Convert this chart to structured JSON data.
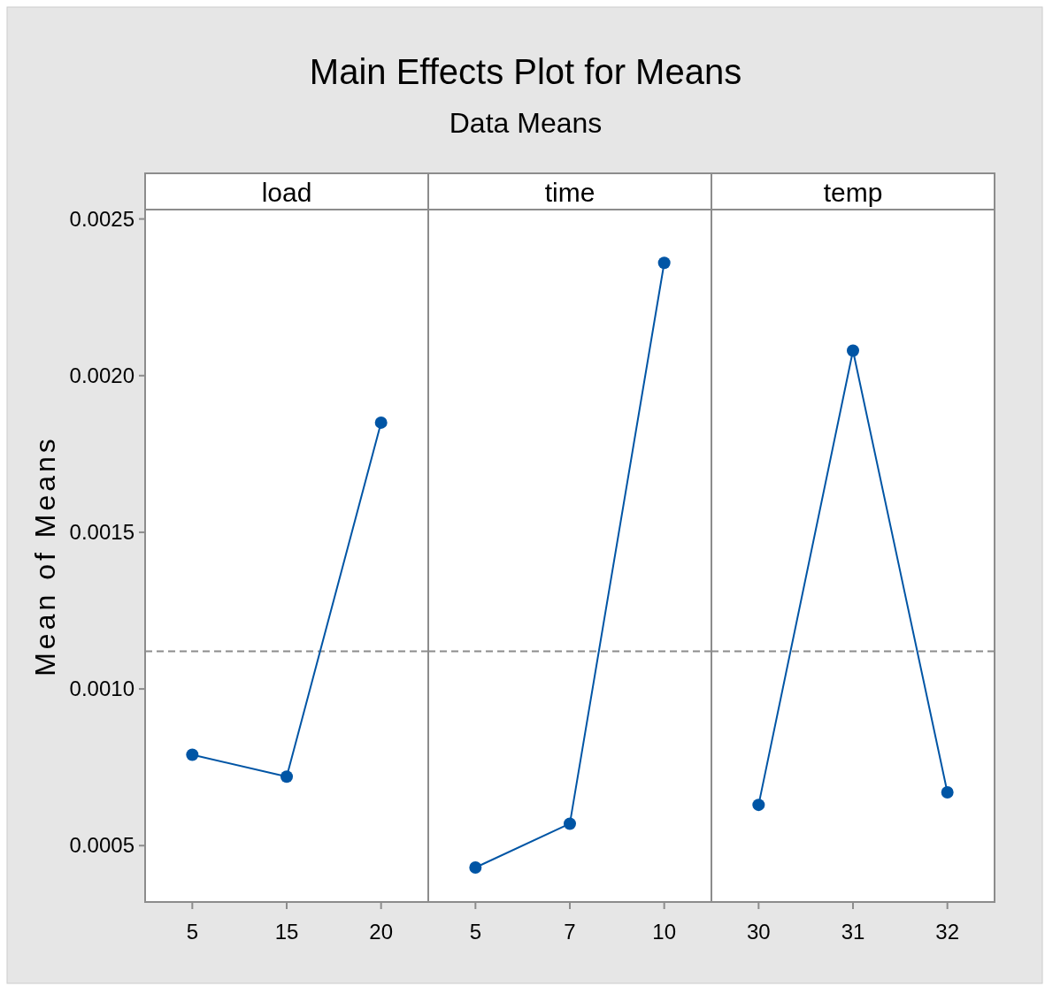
{
  "chart_data": [
    {
      "type": "line",
      "title": "load",
      "annotations": [
        "Main Effects Plot for Means",
        "Data Means"
      ],
      "ylabel": "Mean of Means",
      "categories": [
        "5",
        "15",
        "20"
      ],
      "series": [
        {
          "color": "#0055a5",
          "values": [
            0.00079,
            0.00072,
            0.00185
          ]
        }
      ],
      "ylim": [
        0.00032,
        0.00253
      ],
      "yticks": [
        {
          "value": 0.0005,
          "label": "0.0005"
        },
        {
          "value": 0.001,
          "label": "0.0010"
        },
        {
          "value": 0.0015,
          "label": "0.0015"
        },
        {
          "value": 0.002,
          "label": "0.0020"
        },
        {
          "value": 0.0025,
          "label": "0.0025"
        }
      ],
      "ref_lines": [
        {
          "axis": "y",
          "value": 0.00112,
          "color": "#8c8c8c",
          "line_style": "dashed"
        }
      ],
      "marker": "circle"
    },
    {
      "type": "line",
      "title": "time",
      "categories": [
        "5",
        "7",
        "10"
      ],
      "series": [
        {
          "color": "#0055a5",
          "values": [
            0.00043,
            0.00057,
            0.00236
          ]
        }
      ],
      "ylim": [
        0.00032,
        0.00253
      ],
      "tick_labels": "x",
      "ref_lines": [
        {
          "axis": "y",
          "value": 0.00112,
          "color": "#8c8c8c",
          "line_style": "dashed"
        }
      ],
      "marker": "circle"
    },
    {
      "type": "line",
      "title": "temp",
      "categories": [
        "30",
        "31",
        "32"
      ],
      "series": [
        {
          "color": "#0055a5",
          "values": [
            0.00063,
            0.00208,
            0.00067
          ]
        }
      ],
      "ylim": [
        0.00032,
        0.00253
      ],
      "tick_labels": "x",
      "ref_lines": [
        {
          "axis": "y",
          "value": 0.00112,
          "color": "#8c8c8c",
          "line_style": "dashed"
        }
      ],
      "marker": "circle"
    }
  ]
}
